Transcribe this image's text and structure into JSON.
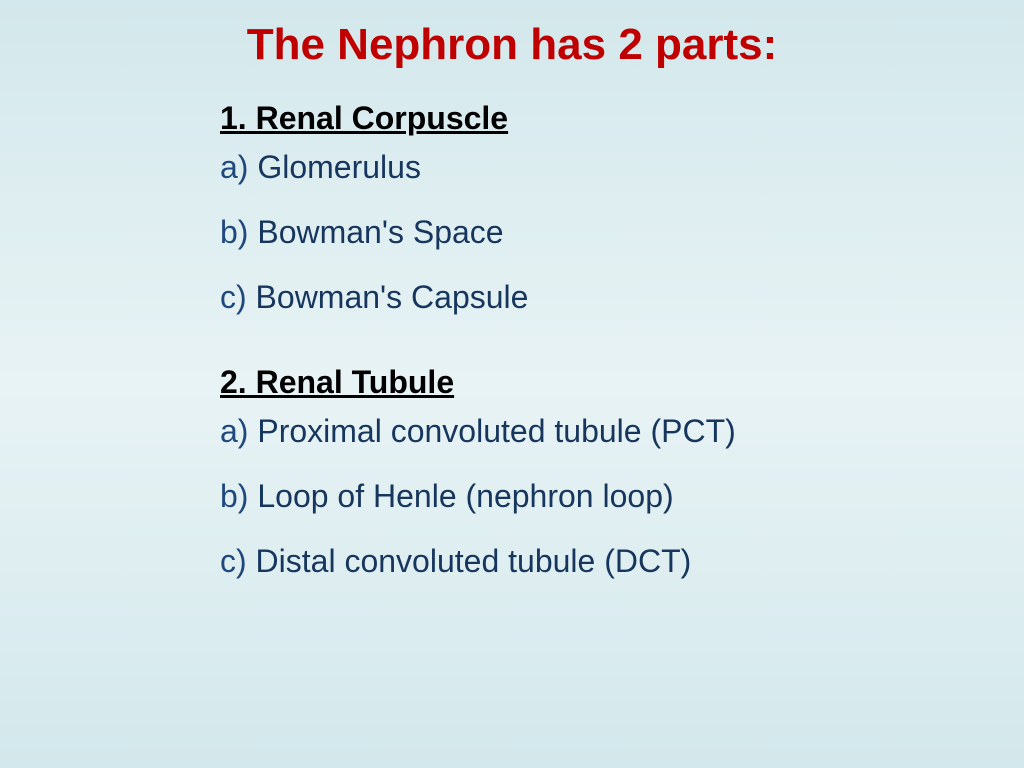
{
  "slide": {
    "title": "The Nephron has 2 parts:",
    "section1": {
      "header": "1. Renal Corpuscle",
      "items": [
        {
          "letter": "a)",
          "text": " Glomerulus"
        },
        {
          "letter": "b)",
          "text": " Bowman's Space"
        },
        {
          "letter": "c)",
          "text": " Bowman's Capsule"
        }
      ]
    },
    "section2": {
      "header": "2. Renal Tubule",
      "items": [
        {
          "letter": "a)",
          "text": " Proximal convoluted tubule (PCT)"
        },
        {
          "letter": "b)",
          "text": " Loop of Henle (nephron loop)"
        },
        {
          "letter": "c)",
          "text": " Distal convoluted tubule (DCT)"
        }
      ]
    },
    "colors": {
      "title_color": "#c00000",
      "header_color": "#000000",
      "item_text_color": "#17365d",
      "letter_color": "#1f497d",
      "background_gradient_top": "#d3e8ec",
      "background_gradient_mid": "#e8f3f5",
      "background_gradient_bottom": "#d3e8ec"
    },
    "typography": {
      "title_fontsize": 44,
      "header_fontsize": 32,
      "item_fontsize": 32,
      "font_family": "Arial"
    }
  }
}
